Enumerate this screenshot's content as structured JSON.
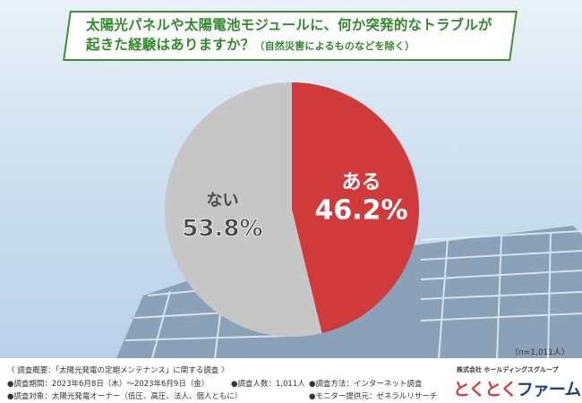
{
  "title": {
    "line1": "太陽光パネルや太陽電池モジュールに、何か突発的なトラブルが",
    "line2": "起きた経験はありますか？",
    "line2_sub": "（自然災害によるものなどを除く）"
  },
  "chart_data": {
    "type": "pie",
    "slices": [
      {
        "label": "ある",
        "value": 46.2,
        "display": "46.2%",
        "color": "#d13a3a"
      },
      {
        "label": "ない",
        "value": 53.8,
        "display": "53.8%",
        "color": "#c6c6c6"
      }
    ],
    "start": "top",
    "direction": "clockwise"
  },
  "n_label": "（n=1,011人）",
  "footer": {
    "line1": "〈 調査概要：「太陽光発電の定期メンテナンス」に関する調査 〉",
    "period": "●調査期間：2023年6月8日（木）～2023年6月9日（金）",
    "count": "●調査人数：1,011人",
    "method": "●調査方法：インターネット調査",
    "target": "●調査対象：太陽光発電オーナー（低圧、高圧、法人、個人ともに）",
    "provider": "●モニター提供元：ゼネラルリサーチ"
  },
  "logo": {
    "company": "株式会社 ホールディングスグループ",
    "name_a": "とくとく",
    "name_b": "ファーム"
  }
}
